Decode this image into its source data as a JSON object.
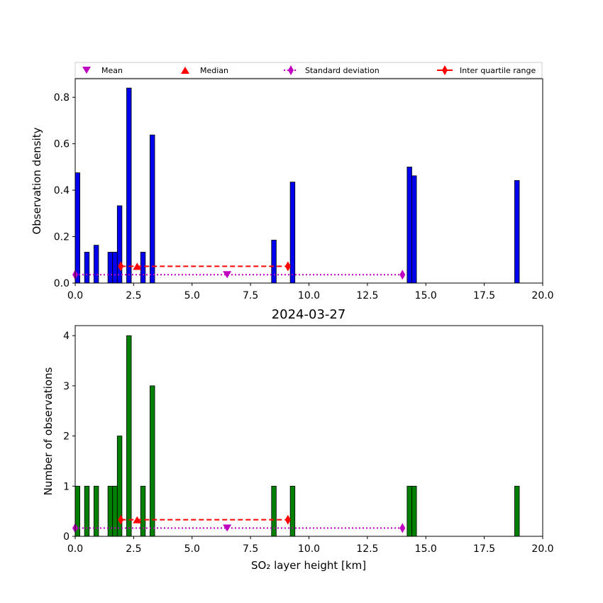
{
  "chart_data": [
    {
      "type": "bar",
      "title": "",
      "xlabel": "",
      "ylabel": "Observation density",
      "xlim": [
        0,
        20
      ],
      "ylim": [
        0,
        0.88
      ],
      "xticks": [
        "0.0",
        "2.5",
        "5.0",
        "7.5",
        "10.0",
        "12.5",
        "15.0",
        "17.5",
        "20.0"
      ],
      "yticks": [
        "0.0",
        "0.2",
        "0.4",
        "0.6",
        "0.8"
      ],
      "ytick_values": [
        0,
        0.2,
        0.4,
        0.6,
        0.8
      ],
      "bar_color": "#0000ee",
      "bar_width": 0.2,
      "bars": [
        {
          "x": 0.1,
          "value": 0.475
        },
        {
          "x": 0.5,
          "value": 0.133
        },
        {
          "x": 0.9,
          "value": 0.163
        },
        {
          "x": 1.5,
          "value": 0.133
        },
        {
          "x": 1.7,
          "value": 0.133
        },
        {
          "x": 1.9,
          "value": 0.333
        },
        {
          "x": 2.3,
          "value": 0.84
        },
        {
          "x": 2.9,
          "value": 0.133
        },
        {
          "x": 3.3,
          "value": 0.638
        },
        {
          "x": 8.5,
          "value": 0.185
        },
        {
          "x": 9.3,
          "value": 0.435
        },
        {
          "x": 14.3,
          "value": 0.5
        },
        {
          "x": 14.5,
          "value": 0.462
        },
        {
          "x": 18.9,
          "value": 0.442
        }
      ],
      "markers": {
        "mean": {
          "x": 6.5,
          "y": 0.036
        },
        "median": {
          "x": 2.65,
          "y": 0.072
        },
        "std": {
          "x1": 0.0,
          "x2": 14.0,
          "y": 0.036
        },
        "iqr": {
          "x1": 1.95,
          "x2": 9.1,
          "y": 0.072
        }
      }
    },
    {
      "type": "bar",
      "title": "2024-03-27",
      "xlabel": "SO₂ layer height [km]",
      "ylabel": "Number of observations",
      "xlim": [
        0,
        20
      ],
      "ylim": [
        0,
        4.2
      ],
      "xticks": [
        "0.0",
        "2.5",
        "5.0",
        "7.5",
        "10.0",
        "12.5",
        "15.0",
        "17.5",
        "20.0"
      ],
      "yticks": [
        "0",
        "1",
        "2",
        "3",
        "4"
      ],
      "ytick_values": [
        0,
        1,
        2,
        3,
        4
      ],
      "bar_color": "#008000",
      "bar_width": 0.2,
      "bars": [
        {
          "x": 0.1,
          "value": 1
        },
        {
          "x": 0.5,
          "value": 1
        },
        {
          "x": 0.9,
          "value": 1
        },
        {
          "x": 1.5,
          "value": 1
        },
        {
          "x": 1.7,
          "value": 1
        },
        {
          "x": 1.9,
          "value": 2
        },
        {
          "x": 2.3,
          "value": 4
        },
        {
          "x": 2.9,
          "value": 1
        },
        {
          "x": 3.3,
          "value": 3
        },
        {
          "x": 8.5,
          "value": 1
        },
        {
          "x": 9.3,
          "value": 1
        },
        {
          "x": 14.3,
          "value": 1
        },
        {
          "x": 14.5,
          "value": 1
        },
        {
          "x": 18.9,
          "value": 1
        }
      ],
      "markers": {
        "mean": {
          "x": 6.5,
          "y": 0.165
        },
        "median": {
          "x": 2.65,
          "y": 0.33
        },
        "std": {
          "x1": 0.0,
          "x2": 14.0,
          "y": 0.165
        },
        "iqr": {
          "x1": 1.95,
          "x2": 9.1,
          "y": 0.33
        }
      }
    }
  ],
  "legend": {
    "placement": "top",
    "entries": [
      {
        "key": "mean",
        "label": "Mean",
        "color": "#c000c0"
      },
      {
        "key": "median",
        "label": "Median",
        "color": "#ff0000"
      },
      {
        "key": "std",
        "label": "Standard deviation",
        "color": "#c000c0"
      },
      {
        "key": "iqr",
        "label": "Inter quartile range",
        "color": "#ff0000"
      }
    ]
  },
  "colors": {
    "mean": "#c000c0",
    "median": "#ff0000",
    "std": "#c000c0",
    "iqr": "#ff0000"
  }
}
